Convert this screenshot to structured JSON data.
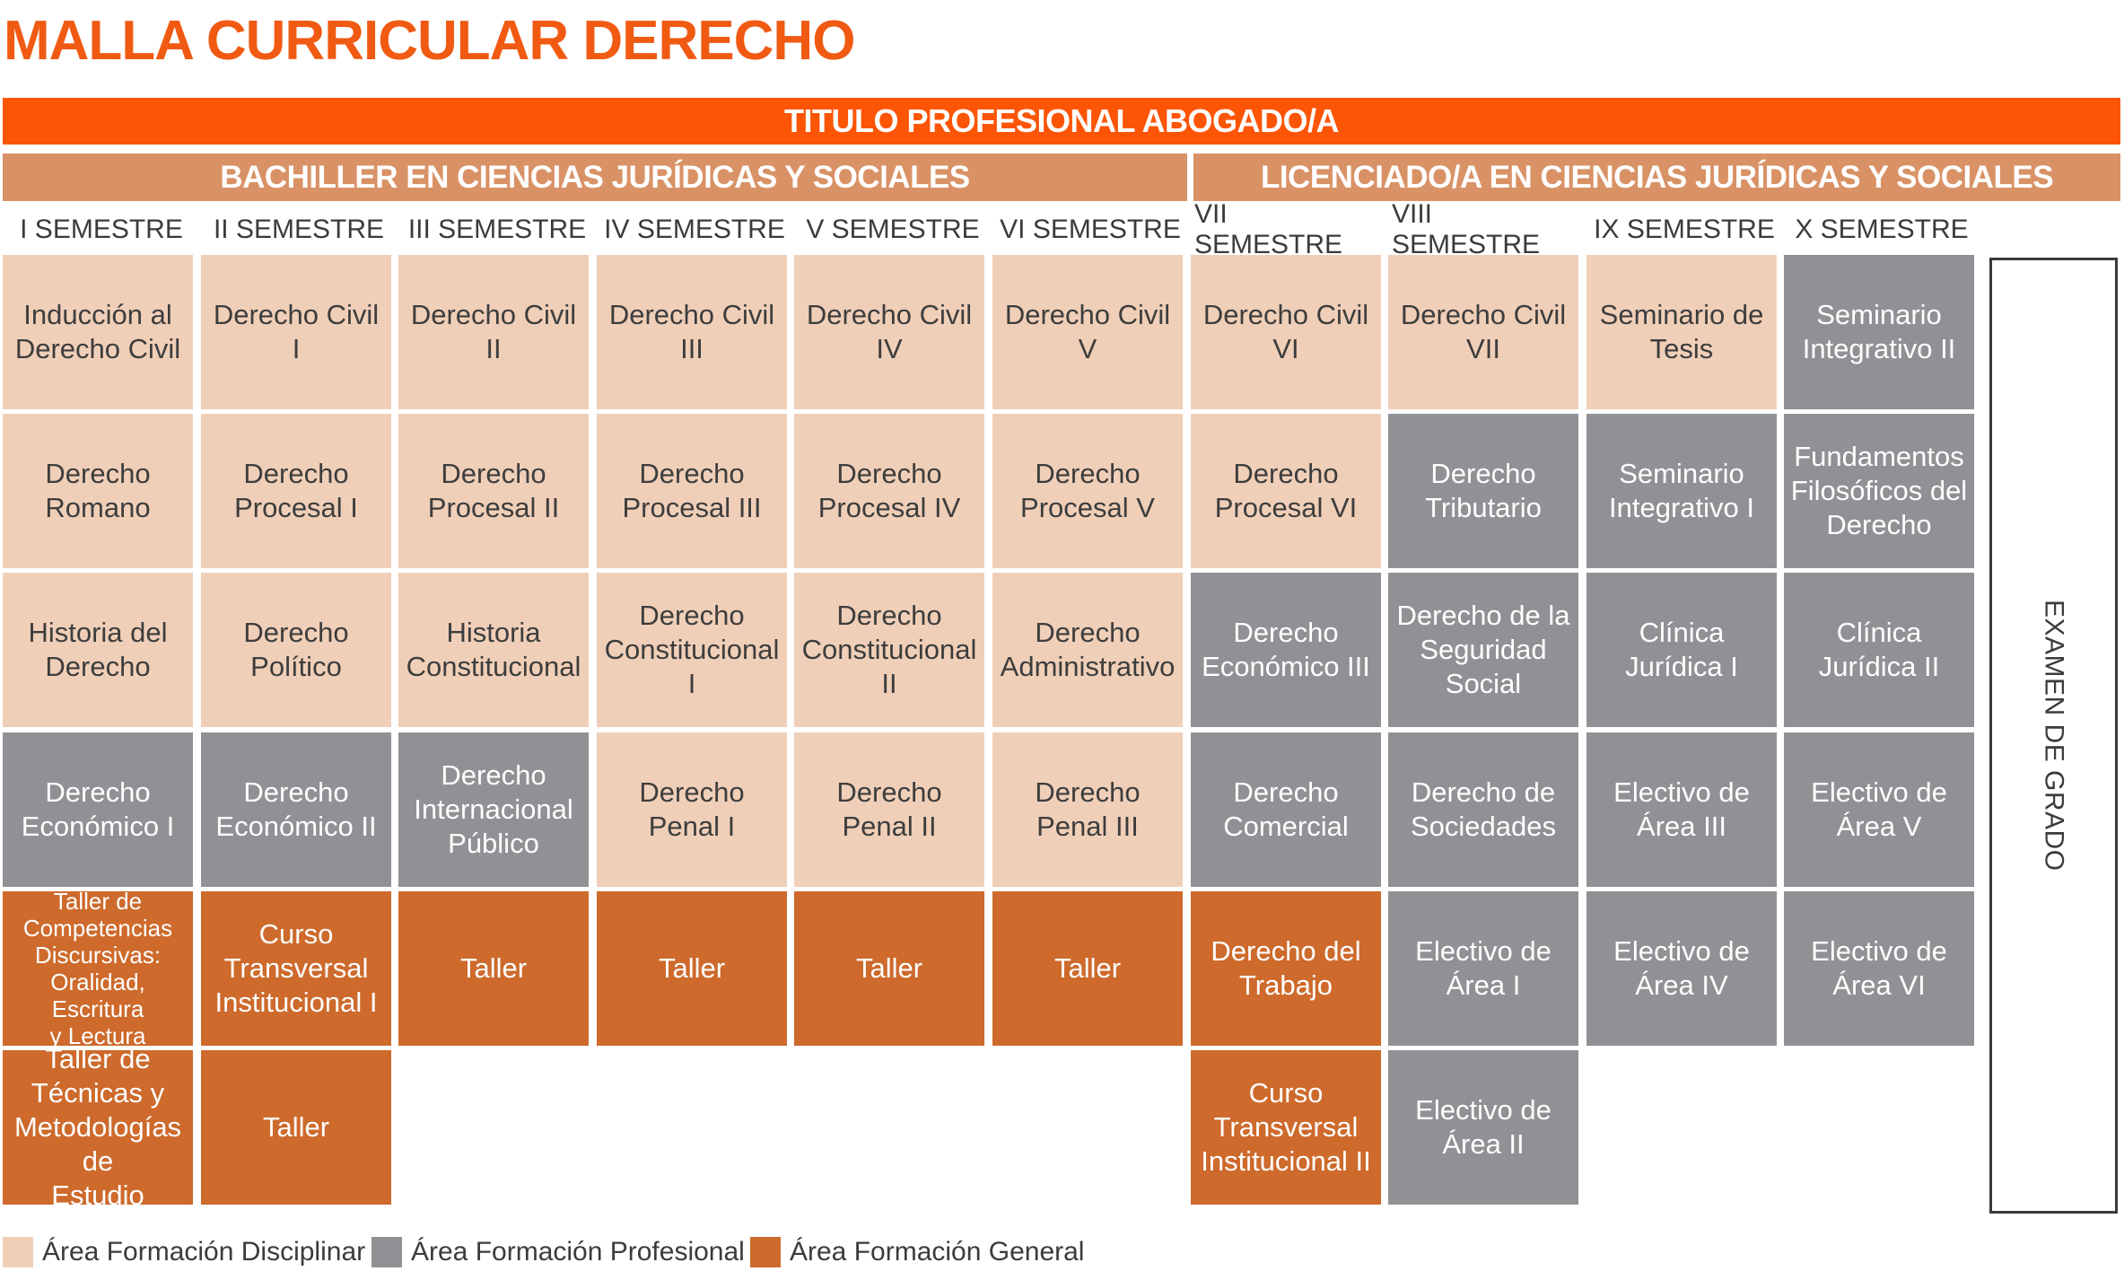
{
  "title": "MALLA CURRICULAR DERECHO",
  "top_band": "TITULO PROFESIONAL ABOGADO/A",
  "bachiller_band": "BACHILLER EN CIENCIAS JURÍDICAS Y SOCIALES",
  "licenciado_band": "LICENCIADO/A EN CIENCIAS JURÍDICAS Y SOCIALES",
  "semesters": [
    "I SEMESTRE",
    "II SEMESTRE",
    "III SEMESTRE",
    "IV SEMESTRE",
    "V SEMESTRE",
    "VI SEMESTRE",
    "VII SEMESTRE",
    "VIII SEMESTRE",
    "IX SEMESTRE",
    "X SEMESTRE"
  ],
  "exam_label": "EXAMEN DE GRADO",
  "colors": {
    "disc": "#f0cfb8",
    "prof": "#919195",
    "gen": "#cd6a2c",
    "accent": "#fc5506",
    "band": "#d99266"
  },
  "courses": [
    [
      {
        "t": "Inducción al\nDerecho Civil",
        "a": "disc"
      },
      {
        "t": "Derecho\nRomano",
        "a": "disc"
      },
      {
        "t": "Historia del\nDerecho",
        "a": "disc"
      },
      {
        "t": "Derecho\nEconómico I",
        "a": "prof"
      },
      {
        "t": "Taller de\nCompetencias\nDiscursivas:\nOralidad, Escritura\ny Lectura",
        "a": "gen",
        "small": true
      },
      {
        "t": "Taller de\nTécnicas y\nMetodologías de\nEstudio",
        "a": "gen"
      }
    ],
    [
      {
        "t": "Derecho Civil I",
        "a": "disc"
      },
      {
        "t": "Derecho\nProcesal I",
        "a": "disc"
      },
      {
        "t": "Derecho\nPolítico",
        "a": "disc"
      },
      {
        "t": "Derecho\nEconómico II",
        "a": "prof"
      },
      {
        "t": "Curso\nTransversal\nInstitucional I",
        "a": "gen"
      },
      {
        "t": "Taller",
        "a": "gen"
      }
    ],
    [
      {
        "t": "Derecho Civil II",
        "a": "disc"
      },
      {
        "t": "Derecho\nProcesal II",
        "a": "disc"
      },
      {
        "t": "Historia\nConstitucional",
        "a": "disc"
      },
      {
        "t": "Derecho\nInternacional\nPúblico",
        "a": "prof"
      },
      {
        "t": "Taller",
        "a": "gen"
      },
      null
    ],
    [
      {
        "t": "Derecho Civil III",
        "a": "disc"
      },
      {
        "t": "Derecho\nProcesal III",
        "a": "disc"
      },
      {
        "t": "Derecho\nConstitucional I",
        "a": "disc"
      },
      {
        "t": "Derecho\nPenal I",
        "a": "disc"
      },
      {
        "t": "Taller",
        "a": "gen"
      },
      null
    ],
    [
      {
        "t": "Derecho Civil IV",
        "a": "disc"
      },
      {
        "t": "Derecho\nProcesal IV",
        "a": "disc"
      },
      {
        "t": "Derecho\nConstitucional II",
        "a": "disc"
      },
      {
        "t": "Derecho\nPenal II",
        "a": "disc"
      },
      {
        "t": "Taller",
        "a": "gen"
      },
      null
    ],
    [
      {
        "t": "Derecho Civil V",
        "a": "disc"
      },
      {
        "t": "Derecho\nProcesal V",
        "a": "disc"
      },
      {
        "t": "Derecho\nAdministrativo",
        "a": "disc"
      },
      {
        "t": "Derecho\nPenal III",
        "a": "disc"
      },
      {
        "t": "Taller",
        "a": "gen"
      },
      null
    ],
    [
      {
        "t": "Derecho Civil VI",
        "a": "disc"
      },
      {
        "t": "Derecho\nProcesal VI",
        "a": "disc"
      },
      {
        "t": "Derecho\nEconómico III",
        "a": "prof"
      },
      {
        "t": "Derecho\nComercial",
        "a": "prof"
      },
      {
        "t": "Derecho del\nTrabajo",
        "a": "gen"
      },
      {
        "t": "Curso\nTransversal\nInstitucional II",
        "a": "gen"
      }
    ],
    [
      {
        "t": "Derecho Civil VII",
        "a": "disc"
      },
      {
        "t": "Derecho\nTributario",
        "a": "prof"
      },
      {
        "t": "Derecho de la\nSeguridad\nSocial",
        "a": "prof"
      },
      {
        "t": "Derecho de\nSociedades",
        "a": "prof"
      },
      {
        "t": "Electivo de\nÁrea I",
        "a": "prof"
      },
      {
        "t": "Electivo de\nÁrea II",
        "a": "prof"
      }
    ],
    [
      {
        "t": "Seminario de\nTesis",
        "a": "disc"
      },
      {
        "t": "Seminario\nIntegrativo I",
        "a": "prof"
      },
      {
        "t": "Clínica\nJurídica I",
        "a": "prof"
      },
      {
        "t": "Electivo de\nÁrea III",
        "a": "prof"
      },
      {
        "t": "Electivo de\nÁrea IV",
        "a": "prof"
      },
      null
    ],
    [
      {
        "t": "Seminario\nIntegrativo II",
        "a": "prof"
      },
      {
        "t": "Fundamentos\nFilosóficos del\nDerecho",
        "a": "prof"
      },
      {
        "t": "Clínica\nJurídica II",
        "a": "prof"
      },
      {
        "t": "Electivo de\nÁrea V",
        "a": "prof"
      },
      {
        "t": "Electivo de\nÁrea VI",
        "a": "prof"
      },
      null
    ]
  ],
  "legend": [
    {
      "label": "Área Formación Disciplinar",
      "area": "disc"
    },
    {
      "label": "Área Formación Profesional",
      "area": "prof"
    },
    {
      "label": "Área Formación General",
      "area": "gen"
    }
  ]
}
